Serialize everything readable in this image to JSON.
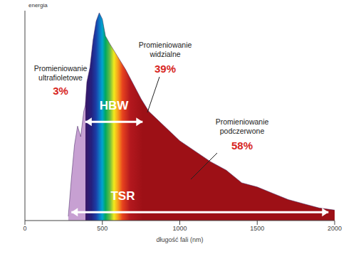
{
  "chart_data": {
    "type": "area",
    "x_label": "długość fali (nm)",
    "y_label": "energia",
    "x": [
      280,
      300,
      320,
      340,
      360,
      380,
      390,
      400,
      420,
      440,
      460,
      480,
      500,
      520,
      550,
      600,
      650,
      700,
      750,
      800,
      900,
      1000,
      1100,
      1200,
      1300,
      1400,
      1500,
      1600,
      1700,
      1800,
      1900,
      2000
    ],
    "values": [
      2,
      20,
      36,
      45,
      40,
      52,
      55,
      66,
      73,
      86,
      95,
      99,
      96,
      88,
      84,
      78,
      72,
      65,
      58,
      52,
      45,
      38,
      33,
      28,
      24,
      18,
      16,
      13,
      10,
      8,
      6,
      5
    ],
    "xlim": [
      0,
      2000
    ],
    "xticks": [
      0,
      500,
      1000,
      1500,
      2000
    ],
    "ylim": [
      0,
      100
    ],
    "tick_labels": "x",
    "grid": false,
    "regions": [
      {
        "name": "Promieniowanie ultrafioletowe",
        "share": 3,
        "share_label": "3%"
      },
      {
        "name": "Promieniowanie widzialne",
        "share": 39,
        "share_label": "39%"
      },
      {
        "name": "Promieniowanie podczerwone",
        "share": 58,
        "share_label": "58%"
      }
    ],
    "ranges": [
      {
        "label": "HBW",
        "from": 390,
        "to": 760
      },
      {
        "label": "TSR",
        "from": 300,
        "to": 1960
      }
    ]
  }
}
